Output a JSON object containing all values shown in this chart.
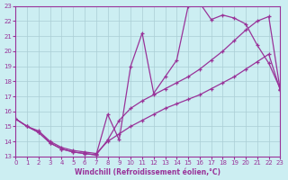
{
  "xlabel": "Windchill (Refroidissement éolien,°C)",
  "bg_color": "#cceef2",
  "grid_color": "#aacdd4",
  "line_color": "#993399",
  "xlim": [
    0,
    23
  ],
  "ylim": [
    13,
    23
  ],
  "xticks": [
    0,
    1,
    2,
    3,
    4,
    5,
    6,
    7,
    8,
    9,
    10,
    11,
    12,
    13,
    14,
    15,
    16,
    17,
    18,
    19,
    20,
    21,
    22,
    23
  ],
  "yticks": [
    13,
    14,
    15,
    16,
    17,
    18,
    19,
    20,
    21,
    22,
    23
  ],
  "line1_x": [
    0,
    1,
    2,
    3,
    4,
    5,
    6,
    7,
    8,
    9,
    10,
    11,
    12,
    13,
    14,
    15,
    16,
    17,
    18,
    19,
    20,
    21,
    22,
    23
  ],
  "line1_y": [
    15.5,
    15.0,
    14.6,
    13.9,
    13.5,
    13.3,
    13.2,
    13.1,
    15.8,
    14.1,
    19.0,
    21.2,
    17.2,
    18.3,
    19.4,
    23.0,
    23.2,
    22.1,
    22.4,
    22.2,
    21.8,
    20.4,
    19.2,
    17.5
  ],
  "line2_x": [
    0,
    1,
    2,
    3,
    4,
    5,
    6,
    7,
    8,
    9,
    10,
    11,
    12,
    13,
    14,
    15,
    16,
    17,
    18,
    19,
    20,
    21,
    22,
    23
  ],
  "line2_y": [
    15.5,
    15.0,
    14.6,
    13.9,
    13.5,
    13.3,
    13.2,
    13.1,
    14.1,
    15.4,
    16.2,
    16.7,
    17.1,
    17.5,
    17.9,
    18.3,
    18.8,
    19.4,
    20.0,
    20.7,
    21.4,
    22.0,
    22.3,
    17.4
  ],
  "line3_x": [
    0,
    1,
    2,
    3,
    4,
    5,
    6,
    7,
    8,
    9,
    10,
    11,
    12,
    13,
    14,
    15,
    16,
    17,
    18,
    19,
    20,
    21,
    22,
    23
  ],
  "line3_y": [
    15.5,
    15.0,
    14.7,
    14.0,
    13.6,
    13.4,
    13.3,
    13.2,
    14.0,
    14.5,
    15.0,
    15.4,
    15.8,
    16.2,
    16.5,
    16.8,
    17.1,
    17.5,
    17.9,
    18.3,
    18.8,
    19.3,
    19.8,
    17.4
  ]
}
